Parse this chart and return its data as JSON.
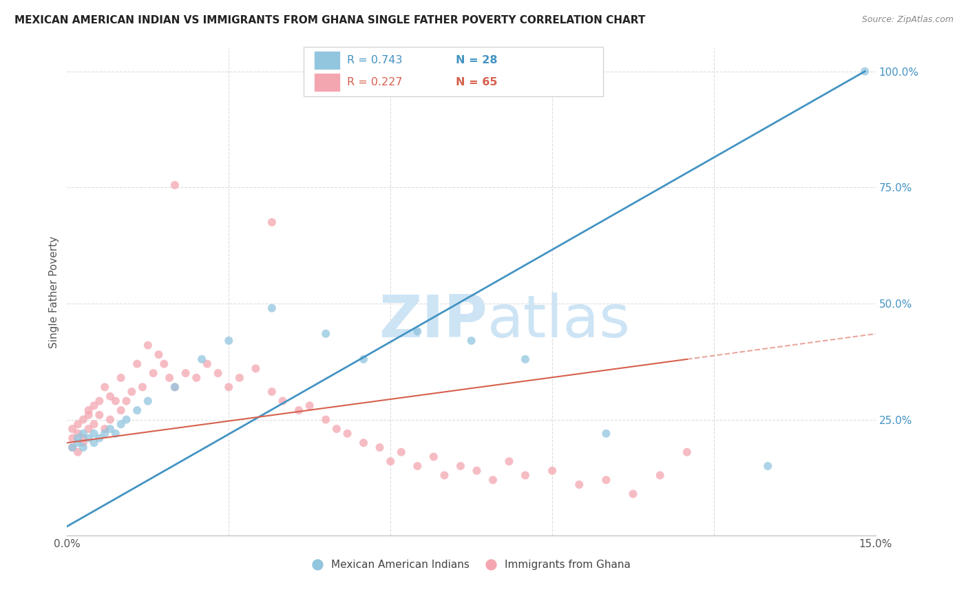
{
  "title": "MEXICAN AMERICAN INDIAN VS IMMIGRANTS FROM GHANA SINGLE FATHER POVERTY CORRELATION CHART",
  "source": "Source: ZipAtlas.com",
  "ylabel": "Single Father Poverty",
  "xmin": 0.0,
  "xmax": 0.15,
  "ymin": 0.0,
  "ymax": 1.05,
  "xticks": [
    0.0,
    0.03,
    0.06,
    0.09,
    0.12,
    0.15
  ],
  "xtick_labels": [
    "0.0%",
    "",
    "",
    "",
    "",
    "15.0%"
  ],
  "ytick_labels_right": [
    "",
    "25.0%",
    "50.0%",
    "75.0%",
    "100.0%"
  ],
  "ytick_vals_right": [
    0.0,
    0.25,
    0.5,
    0.75,
    1.0
  ],
  "blue_R": 0.743,
  "blue_N": 28,
  "pink_R": 0.227,
  "pink_N": 65,
  "blue_color": "#92c5de",
  "pink_color": "#f4a6b0",
  "blue_line_color": "#4393c3",
  "pink_line_color": "#d6604d",
  "watermark_color": "#cde4f5",
  "background_color": "#ffffff",
  "grid_color": "#dddddd",
  "legend_label_blue": "Mexican American Indians",
  "legend_label_pink": "Immigrants from Ghana",
  "blue_scatter_x": [
    0.001,
    0.002,
    0.002,
    0.003,
    0.003,
    0.004,
    0.005,
    0.006,
    0.007,
    0.008,
    0.009,
    0.01,
    0.011,
    0.013,
    0.015,
    0.02,
    0.025,
    0.03,
    0.038,
    0.048,
    0.058,
    0.065,
    0.075,
    0.085,
    0.095,
    0.11,
    0.13,
    0.148
  ],
  "blue_scatter_y": [
    0.18,
    0.19,
    0.2,
    0.21,
    0.22,
    0.23,
    0.2,
    0.24,
    0.22,
    0.25,
    0.24,
    0.26,
    0.27,
    0.28,
    0.3,
    0.32,
    0.38,
    0.42,
    0.49,
    0.43,
    0.38,
    0.44,
    0.42,
    0.38,
    0.25,
    0.22,
    0.15,
    1.0
  ],
  "pink_scatter_x": [
    0.001,
    0.001,
    0.001,
    0.002,
    0.002,
    0.002,
    0.003,
    0.003,
    0.003,
    0.004,
    0.004,
    0.004,
    0.005,
    0.005,
    0.006,
    0.006,
    0.007,
    0.007,
    0.008,
    0.008,
    0.009,
    0.01,
    0.01,
    0.011,
    0.012,
    0.013,
    0.014,
    0.015,
    0.016,
    0.017,
    0.018,
    0.019,
    0.02,
    0.022,
    0.024,
    0.026,
    0.028,
    0.03,
    0.032,
    0.034,
    0.036,
    0.038,
    0.04,
    0.042,
    0.044,
    0.046,
    0.048,
    0.05,
    0.052,
    0.054,
    0.056,
    0.058,
    0.06,
    0.062,
    0.064,
    0.066,
    0.068,
    0.07,
    0.075,
    0.08,
    0.085,
    0.09,
    0.095,
    0.1,
    0.11
  ],
  "pink_scatter_y": [
    0.18,
    0.2,
    0.22,
    0.17,
    0.21,
    0.23,
    0.19,
    0.24,
    0.2,
    0.22,
    0.26,
    0.25,
    0.23,
    0.27,
    0.25,
    0.28,
    0.22,
    0.31,
    0.24,
    0.29,
    0.28,
    0.26,
    0.33,
    0.28,
    0.3,
    0.36,
    0.31,
    0.4,
    0.34,
    0.38,
    0.36,
    0.33,
    0.31,
    0.34,
    0.33,
    0.36,
    0.34,
    0.31,
    0.33,
    0.3,
    0.35,
    0.31,
    0.28,
    0.26,
    0.27,
    0.24,
    0.22,
    0.2,
    0.18,
    0.22,
    0.19,
    0.14,
    0.16,
    0.18,
    0.13,
    0.11,
    0.15,
    0.12,
    0.13,
    0.09,
    0.11,
    0.1,
    0.08,
    0.12,
    0.17
  ]
}
